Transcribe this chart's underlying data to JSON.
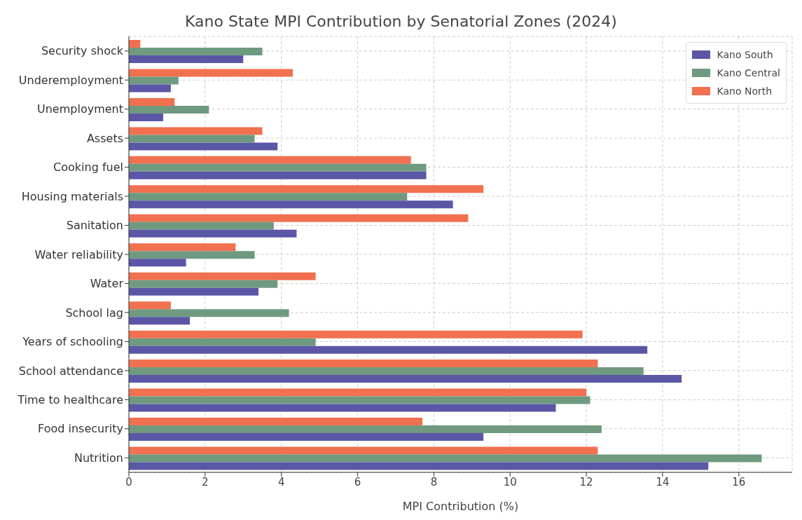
{
  "chart_data": {
    "type": "bar",
    "orientation": "horizontal",
    "title": "Kano State MPI Contribution by Senatorial Zones (2024)",
    "xlabel": "MPI Contribution (%)",
    "categories": [
      "Security shock",
      "Underemployment",
      "Unemployment",
      "Assets",
      "Cooking fuel",
      "Housing materials",
      "Sanitation",
      "Water reliability",
      "Water",
      "School lag",
      "Years of schooling",
      "School attendance",
      "Time to healthcare",
      "Food insecurity",
      "Nutrition"
    ],
    "series": [
      {
        "name": "Kano South",
        "color": "#5b57a6",
        "values": [
          3.0,
          1.1,
          0.9,
          3.9,
          7.8,
          8.5,
          4.4,
          1.5,
          3.4,
          1.6,
          13.6,
          14.5,
          11.2,
          9.3,
          15.2
        ]
      },
      {
        "name": "Kano Central",
        "color": "#6f9a80",
        "values": [
          3.5,
          1.3,
          2.1,
          3.3,
          7.8,
          7.3,
          3.8,
          3.3,
          3.9,
          4.2,
          4.9,
          13.5,
          12.1,
          12.4,
          16.6
        ]
      },
      {
        "name": "Kano North",
        "color": "#f0704f",
        "values": [
          0.3,
          4.3,
          1.2,
          3.5,
          7.4,
          9.3,
          8.9,
          2.8,
          4.9,
          1.1,
          11.9,
          12.3,
          12.0,
          7.7,
          12.3
        ]
      }
    ],
    "xlim": [
      0,
      17.4
    ],
    "xticks": [
      0,
      2,
      4,
      6,
      8,
      10,
      12,
      14,
      16
    ],
    "grid": true,
    "legend": "top right"
  }
}
